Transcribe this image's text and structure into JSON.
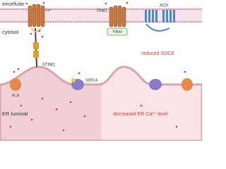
{
  "labels": {
    "excellular": "excellular",
    "cytosol": "cytosol",
    "calcium": "Ca²⁺",
    "orai1": "Orai1",
    "ac9": "AC9",
    "yotiao": "Yotiao",
    "reduced_soce": "reduced SOCE",
    "stim1": "STIM1",
    "serca": "SERCA",
    "ip3r": "IP₃R",
    "er_luminal": "ER luminal",
    "decreased": "decreased ER Ca²⁺ level"
  }
}
